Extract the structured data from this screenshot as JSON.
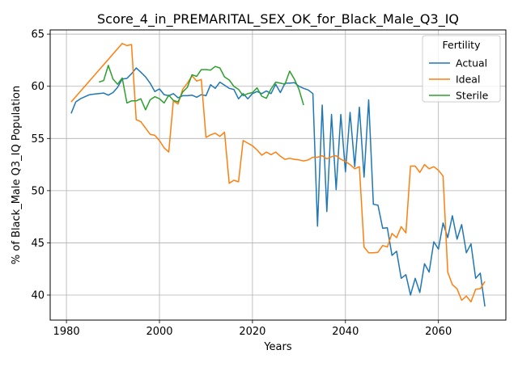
{
  "chart_data": {
    "type": "line",
    "title": "Score_4_in_PREMARITAL_SEX_OK_for_Black_Male_Q3_IQ",
    "xlabel": "Years",
    "ylabel": "% of Black_Male Q3_IQ Population",
    "xlim": [
      1976.5,
      2074.5
    ],
    "ylim": [
      37.6,
      65.4
    ],
    "xticks": [
      1980,
      2000,
      2020,
      2040,
      2060
    ],
    "yticks": [
      40,
      45,
      50,
      55,
      60,
      65
    ],
    "grid": true,
    "legend": {
      "title": "Fertility",
      "position": "top-right"
    },
    "series": [
      {
        "name": "Actual",
        "color": "#1f77b4",
        "x": [
          1981,
          1982,
          1983,
          1984,
          1985,
          1986,
          1987,
          1988,
          1989,
          1990,
          1991,
          1992,
          1993,
          1994,
          1995,
          1996,
          1997,
          1998,
          1999,
          2000,
          2001,
          2002,
          2003,
          2004,
          2005,
          2006,
          2007,
          2008,
          2009,
          2010,
          2011,
          2012,
          2013,
          2014,
          2015,
          2016,
          2017,
          2018,
          2019,
          2020,
          2021,
          2022,
          2023,
          2024,
          2025,
          2026,
          2027,
          2028,
          2029,
          2030,
          2031,
          2032,
          2033,
          2034,
          2035,
          2036,
          2037,
          2038,
          2039,
          2040,
          2041,
          2042,
          2043,
          2044,
          2045,
          2046,
          2047,
          2048,
          2049,
          2050,
          2051,
          2052,
          2053,
          2054,
          2055,
          2056,
          2057,
          2058,
          2059,
          2060,
          2061,
          2062,
          2063,
          2064,
          2065,
          2066,
          2067,
          2068,
          2069,
          2070
        ],
        "y": [
          57.4,
          58.5,
          58.8,
          59.0,
          59.2,
          59.25,
          59.3,
          59.35,
          59.15,
          59.4,
          59.9,
          60.7,
          60.75,
          61.2,
          61.75,
          61.35,
          60.9,
          60.3,
          59.5,
          59.75,
          59.2,
          59.1,
          59.3,
          58.9,
          59.1,
          59.1,
          59.15,
          58.95,
          59.2,
          59.1,
          60.15,
          59.8,
          60.4,
          60.1,
          59.8,
          59.7,
          58.8,
          59.3,
          58.8,
          59.3,
          59.5,
          59.3,
          59.55,
          59.3,
          60.2,
          59.4,
          60.3,
          60.3,
          60.35,
          60.0,
          59.8,
          59.65,
          59.3,
          46.6,
          58.2,
          48.0,
          57.3,
          50.1,
          57.3,
          51.8,
          57.5,
          52.3,
          58.0,
          51.3,
          58.7,
          48.7,
          48.6,
          46.4,
          46.45,
          43.8,
          44.2,
          41.6,
          41.95,
          40.0,
          41.6,
          40.25,
          43.0,
          42.2,
          45.1,
          44.4,
          46.9,
          45.5,
          47.6,
          45.35,
          46.75,
          44.05,
          44.9,
          41.6,
          42.1,
          38.9
        ]
      },
      {
        "name": "Ideal",
        "color": "#ff7f0e",
        "x": [
          1981,
          1992,
          1993,
          1994,
          1995,
          1996,
          1997,
          1998,
          1999,
          2000,
          2001,
          2002,
          2003,
          2004,
          2005,
          2006,
          2007,
          2008,
          2009,
          2010,
          2011,
          2012,
          2013,
          2014,
          2015,
          2016,
          2017,
          2018,
          2019,
          2020,
          2021,
          2022,
          2023,
          2024,
          2025,
          2026,
          2027,
          2028,
          2029,
          2030,
          2031,
          2032,
          2033,
          2034,
          2035,
          2036,
          2037,
          2038,
          2039,
          2040,
          2041,
          2042,
          2043,
          2044,
          2045,
          2046,
          2047,
          2048,
          2049,
          2050,
          2051,
          2052,
          2053,
          2054,
          2055,
          2056,
          2057,
          2058,
          2059,
          2060,
          2061,
          2062,
          2063,
          2064,
          2065,
          2066,
          2067,
          2068,
          2069,
          2070
        ],
        "y": [
          58.5,
          64.1,
          63.9,
          64.0,
          56.8,
          56.6,
          56.0,
          55.4,
          55.3,
          54.8,
          54.1,
          53.7,
          58.6,
          58.3,
          59.7,
          60.3,
          61.0,
          60.5,
          60.65,
          55.1,
          55.35,
          55.5,
          55.2,
          55.6,
          50.7,
          51.0,
          50.85,
          54.8,
          54.55,
          54.3,
          53.9,
          53.4,
          53.7,
          53.45,
          53.7,
          53.3,
          53.0,
          53.1,
          53.0,
          52.95,
          52.85,
          52.95,
          53.2,
          53.2,
          53.35,
          53.05,
          53.25,
          53.35,
          53.0,
          52.8,
          52.5,
          52.1,
          52.3,
          44.6,
          44.05,
          44.05,
          44.1,
          44.75,
          44.6,
          45.9,
          45.5,
          46.55,
          45.95,
          52.35,
          52.35,
          51.75,
          52.5,
          52.1,
          52.3,
          51.95,
          51.4,
          42.2,
          41.0,
          40.6,
          39.5,
          39.9,
          39.35,
          40.55,
          40.6,
          41.3
        ]
      },
      {
        "name": "Sterile",
        "color": "#2ca02c",
        "x": [
          1987,
          1988,
          1989,
          1990,
          1991,
          1992,
          1993,
          1994,
          1995,
          1996,
          1997,
          1998,
          1999,
          2000,
          2001,
          2002,
          2003,
          2004,
          2005,
          2006,
          2007,
          2008,
          2009,
          2010,
          2011,
          2012,
          2013,
          2014,
          2015,
          2016,
          2017,
          2018,
          2019,
          2020,
          2021,
          2022,
          2023,
          2024,
          2025,
          2026,
          2027,
          2028,
          2029,
          2030,
          2031
        ],
        "y": [
          60.4,
          60.55,
          62.0,
          60.7,
          60.2,
          60.8,
          58.4,
          58.6,
          58.6,
          58.8,
          57.75,
          58.7,
          59.0,
          58.8,
          58.4,
          59.15,
          58.65,
          58.5,
          59.45,
          59.9,
          61.1,
          60.95,
          61.6,
          61.6,
          61.55,
          61.9,
          61.75,
          60.9,
          60.6,
          60.0,
          59.7,
          59.1,
          59.3,
          59.4,
          59.85,
          59.05,
          58.85,
          59.75,
          60.4,
          60.3,
          60.2,
          61.45,
          60.7,
          59.7,
          58.2
        ]
      }
    ]
  }
}
